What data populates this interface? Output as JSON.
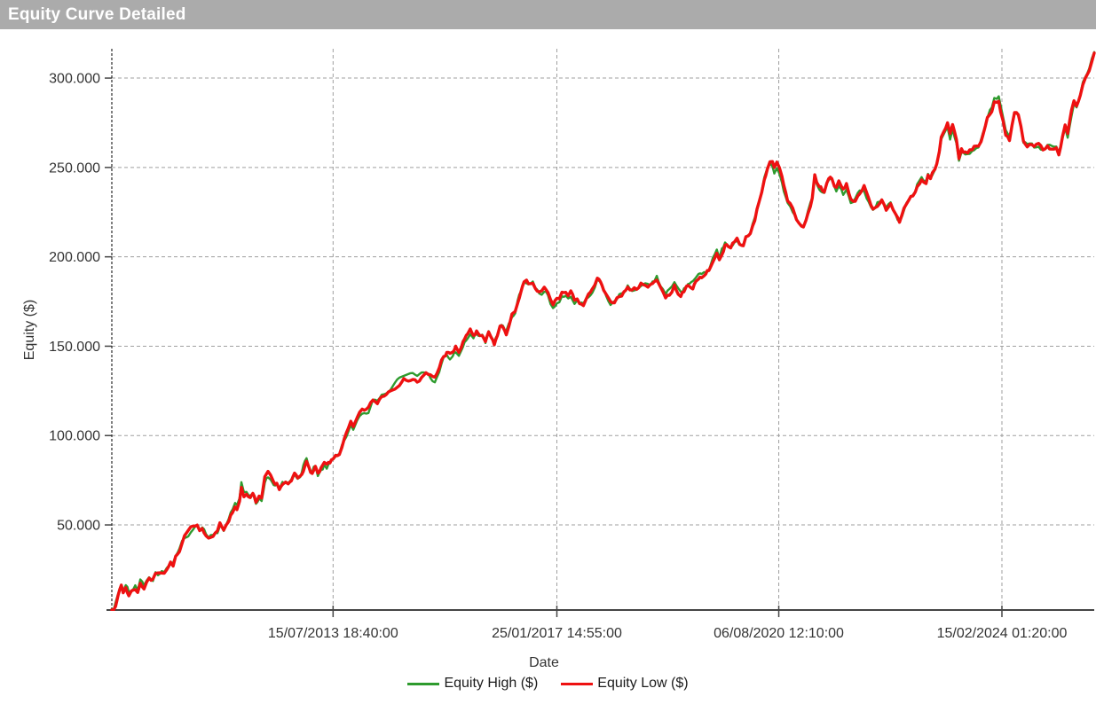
{
  "window": {
    "title": "Equity Curve Detailed"
  },
  "style": {
    "titlebar_bg": "#ababab",
    "titlebar_fg": "#ffffff",
    "background": "#ffffff",
    "grid_color": "#9f9f9f",
    "axis_color": "#454545",
    "label_color": "#333333"
  },
  "chart_data": {
    "type": "line",
    "title": "Equity Curve Detailed",
    "xlabel": "Date",
    "ylabel": "Equity ($)",
    "legend_position": "bottom",
    "grid": true,
    "x_axis": {
      "min": 2010.03,
      "max": 2025.57,
      "ticks": [
        {
          "year": 2013.53,
          "label": "15/07/2013 18:40:00"
        },
        {
          "year": 2017.07,
          "label": "25/01/2017 14:55:00"
        },
        {
          "year": 2020.58,
          "label": "06/08/2020 12:10:00"
        },
        {
          "year": 2024.11,
          "label": "15/02/2024 01:20:00"
        }
      ]
    },
    "y_axis": {
      "min": 2400,
      "max": 316400,
      "ticks": [
        {
          "value": 50000,
          "label": "50.000"
        },
        {
          "value": 100000,
          "label": "100.000"
        },
        {
          "value": 150000,
          "label": "150.000"
        },
        {
          "value": 200000,
          "label": "200.000"
        },
        {
          "value": 250000,
          "label": "250.000"
        },
        {
          "value": 300000,
          "label": "300.000"
        }
      ]
    },
    "series": [
      {
        "name": "Equity High ($)",
        "color": "#2e9b2e",
        "width": 2.4,
        "value_offset": 500,
        "noise_band": 1900,
        "seed": 101
      },
      {
        "name": "Equity Low ($)",
        "color": "#ee1111",
        "width": 3.4,
        "value_offset": 0,
        "noise_band": 2000,
        "seed": 7
      }
    ],
    "points": [
      [
        2010.03,
        2500
      ],
      [
        2010.06,
        2000
      ],
      [
        2010.09,
        6500
      ],
      [
        2010.13,
        11000
      ],
      [
        2010.18,
        16000
      ],
      [
        2010.21,
        12000
      ],
      [
        2010.25,
        15000
      ],
      [
        2010.3,
        11000
      ],
      [
        2010.34,
        13000
      ],
      [
        2010.4,
        15500
      ],
      [
        2010.44,
        13000
      ],
      [
        2010.48,
        18000
      ],
      [
        2010.54,
        16000
      ],
      [
        2010.58,
        20000
      ],
      [
        2010.62,
        22000
      ],
      [
        2010.68,
        20000
      ],
      [
        2010.72,
        24000
      ],
      [
        2010.76,
        23000
      ],
      [
        2010.82,
        25000
      ],
      [
        2010.86,
        25000
      ],
      [
        2010.9,
        27000
      ],
      [
        2010.96,
        30000
      ],
      [
        2011.0,
        29000
      ],
      [
        2011.04,
        33000
      ],
      [
        2011.1,
        35000
      ],
      [
        2011.14,
        39000
      ],
      [
        2011.18,
        42000
      ],
      [
        2011.24,
        45000
      ],
      [
        2011.28,
        47000
      ],
      [
        2011.32,
        49000
      ],
      [
        2011.38,
        51000
      ],
      [
        2011.42,
        48000
      ],
      [
        2011.46,
        50000
      ],
      [
        2011.52,
        45000
      ],
      [
        2011.56,
        44000
      ],
      [
        2011.63,
        45000
      ],
      [
        2011.7,
        46000
      ],
      [
        2011.74,
        50000
      ],
      [
        2011.8,
        47000
      ],
      [
        2011.84,
        51000
      ],
      [
        2011.88,
        54000
      ],
      [
        2011.94,
        58000
      ],
      [
        2011.98,
        62000
      ],
      [
        2012.01,
        60000
      ],
      [
        2012.05,
        65000
      ],
      [
        2012.08,
        73000
      ],
      [
        2012.12,
        67000
      ],
      [
        2012.16,
        67000
      ],
      [
        2012.22,
        64000
      ],
      [
        2012.26,
        66000
      ],
      [
        2012.31,
        62000
      ],
      [
        2012.36,
        65000
      ],
      [
        2012.4,
        63000
      ],
      [
        2012.45,
        75000
      ],
      [
        2012.5,
        78000
      ],
      [
        2012.54,
        76000
      ],
      [
        2012.59,
        72000
      ],
      [
        2012.64,
        73000
      ],
      [
        2012.68,
        70000
      ],
      [
        2012.73,
        72000
      ],
      [
        2012.78,
        72000
      ],
      [
        2012.82,
        71000
      ],
      [
        2012.87,
        73000
      ],
      [
        2012.92,
        77000
      ],
      [
        2012.97,
        75000
      ],
      [
        2013.01,
        77000
      ],
      [
        2013.06,
        82000
      ],
      [
        2013.11,
        85000
      ],
      [
        2013.15,
        81000
      ],
      [
        2013.2,
        79000
      ],
      [
        2013.25,
        82000
      ],
      [
        2013.29,
        77000
      ],
      [
        2013.34,
        80000
      ],
      [
        2013.39,
        83000
      ],
      [
        2013.43,
        82000
      ],
      [
        2013.48,
        84000
      ],
      [
        2013.53,
        85000
      ],
      [
        2013.57,
        87000
      ],
      [
        2013.63,
        89000
      ],
      [
        2013.67,
        94000
      ],
      [
        2013.71,
        98000
      ],
      [
        2013.77,
        102000
      ],
      [
        2013.81,
        106000
      ],
      [
        2013.85,
        103000
      ],
      [
        2013.91,
        108000
      ],
      [
        2013.95,
        111000
      ],
      [
        2013.99,
        113000
      ],
      [
        2014.09,
        114000
      ],
      [
        2014.16,
        119000
      ],
      [
        2014.23,
        117000
      ],
      [
        2014.3,
        122000
      ],
      [
        2014.37,
        124000
      ],
      [
        2014.44,
        127000
      ],
      [
        2014.51,
        128000
      ],
      [
        2014.58,
        130000
      ],
      [
        2014.65,
        131000
      ],
      [
        2014.72,
        132000
      ],
      [
        2014.79,
        133000
      ],
      [
        2014.86,
        131000
      ],
      [
        2014.93,
        133000
      ],
      [
        2015.0,
        134000
      ],
      [
        2015.07,
        132000
      ],
      [
        2015.14,
        131000
      ],
      [
        2015.21,
        137000
      ],
      [
        2015.28,
        144000
      ],
      [
        2015.33,
        146000
      ],
      [
        2015.38,
        144000
      ],
      [
        2015.42,
        145000
      ],
      [
        2015.47,
        148000
      ],
      [
        2015.52,
        146000
      ],
      [
        2015.56,
        149000
      ],
      [
        2015.61,
        153000
      ],
      [
        2015.66,
        155000
      ],
      [
        2015.7,
        158000
      ],
      [
        2015.75,
        155000
      ],
      [
        2015.8,
        157000
      ],
      [
        2015.85,
        154000
      ],
      [
        2015.89,
        154000
      ],
      [
        2015.94,
        151000
      ],
      [
        2015.99,
        156000
      ],
      [
        2016.03,
        153000
      ],
      [
        2016.08,
        150000
      ],
      [
        2016.13,
        155000
      ],
      [
        2016.17,
        160000
      ],
      [
        2016.22,
        159000
      ],
      [
        2016.27,
        157000
      ],
      [
        2016.31,
        161000
      ],
      [
        2016.36,
        166000
      ],
      [
        2016.41,
        169000
      ],
      [
        2016.45,
        175000
      ],
      [
        2016.5,
        179000
      ],
      [
        2016.55,
        184000
      ],
      [
        2016.59,
        185000
      ],
      [
        2016.65,
        183000
      ],
      [
        2016.69,
        184000
      ],
      [
        2016.73,
        181000
      ],
      [
        2016.79,
        179000
      ],
      [
        2016.83,
        179000
      ],
      [
        2016.87,
        181000
      ],
      [
        2016.93,
        178000
      ],
      [
        2016.97,
        174000
      ],
      [
        2017.01,
        172000
      ],
      [
        2017.07,
        175000
      ],
      [
        2017.11,
        176000
      ],
      [
        2017.15,
        179000
      ],
      [
        2017.21,
        179000
      ],
      [
        2017.25,
        177000
      ],
      [
        2017.29,
        179000
      ],
      [
        2017.35,
        175000
      ],
      [
        2017.39,
        177000
      ],
      [
        2017.43,
        175000
      ],
      [
        2017.49,
        174000
      ],
      [
        2017.53,
        176000
      ],
      [
        2017.57,
        178000
      ],
      [
        2017.63,
        180000
      ],
      [
        2017.67,
        183000
      ],
      [
        2017.71,
        187000
      ],
      [
        2017.76,
        184000
      ],
      [
        2017.81,
        180000
      ],
      [
        2017.85,
        177000
      ],
      [
        2017.92,
        173000
      ],
      [
        2017.98,
        175000
      ],
      [
        2018.02,
        177000
      ],
      [
        2018.06,
        179000
      ],
      [
        2018.13,
        181000
      ],
      [
        2018.19,
        184000
      ],
      [
        2018.26,
        182000
      ],
      [
        2018.33,
        183000
      ],
      [
        2018.4,
        185000
      ],
      [
        2018.47,
        186000
      ],
      [
        2018.51,
        185000
      ],
      [
        2018.56,
        185000
      ],
      [
        2018.61,
        187000
      ],
      [
        2018.65,
        189000
      ],
      [
        2018.71,
        185000
      ],
      [
        2018.75,
        182000
      ],
      [
        2018.79,
        179000
      ],
      [
        2018.85,
        180000
      ],
      [
        2018.89,
        181000
      ],
      [
        2018.93,
        184000
      ],
      [
        2018.99,
        181000
      ],
      [
        2019.03,
        179000
      ],
      [
        2019.08,
        181000
      ],
      [
        2019.12,
        183000
      ],
      [
        2019.17,
        183000
      ],
      [
        2019.22,
        184000
      ],
      [
        2019.27,
        186000
      ],
      [
        2019.31,
        188000
      ],
      [
        2019.36,
        190000
      ],
      [
        2019.4,
        191000
      ],
      [
        2019.45,
        193000
      ],
      [
        2019.5,
        195000
      ],
      [
        2019.54,
        199000
      ],
      [
        2019.6,
        204000
      ],
      [
        2019.64,
        199000
      ],
      [
        2019.68,
        203000
      ],
      [
        2019.73,
        207000
      ],
      [
        2019.78,
        205000
      ],
      [
        2019.82,
        204000
      ],
      [
        2019.88,
        208000
      ],
      [
        2019.92,
        210000
      ],
      [
        2019.96,
        208000
      ],
      [
        2020.02,
        206000
      ],
      [
        2020.06,
        210000
      ],
      [
        2020.1,
        212000
      ],
      [
        2020.13,
        213000
      ],
      [
        2020.2,
        222000
      ],
      [
        2020.27,
        232000
      ],
      [
        2020.31,
        238000
      ],
      [
        2020.35,
        245000
      ],
      [
        2020.4,
        250000
      ],
      [
        2020.44,
        253000
      ],
      [
        2020.48,
        252000
      ],
      [
        2020.51,
        248000
      ],
      [
        2020.55,
        251000
      ],
      [
        2020.59,
        248000
      ],
      [
        2020.63,
        243000
      ],
      [
        2020.66,
        238000
      ],
      [
        2020.72,
        230000
      ],
      [
        2020.76,
        229000
      ],
      [
        2020.8,
        226000
      ],
      [
        2020.86,
        221000
      ],
      [
        2020.9,
        219000
      ],
      [
        2020.94,
        217000
      ],
      [
        2020.97,
        216000
      ],
      [
        2021.01,
        220000
      ],
      [
        2021.04,
        223000
      ],
      [
        2021.08,
        228000
      ],
      [
        2021.11,
        232000
      ],
      [
        2021.15,
        245000
      ],
      [
        2021.18,
        241000
      ],
      [
        2021.22,
        239000
      ],
      [
        2021.27,
        237000
      ],
      [
        2021.3,
        236000
      ],
      [
        2021.34,
        241000
      ],
      [
        2021.37,
        243000
      ],
      [
        2021.42,
        244000
      ],
      [
        2021.46,
        240000
      ],
      [
        2021.49,
        238000
      ],
      [
        2021.53,
        241000
      ],
      [
        2021.57,
        238000
      ],
      [
        2021.6,
        236000
      ],
      [
        2021.65,
        239000
      ],
      [
        2021.69,
        235000
      ],
      [
        2021.72,
        231000
      ],
      [
        2021.76,
        230000
      ],
      [
        2021.79,
        231000
      ],
      [
        2021.83,
        234000
      ],
      [
        2021.86,
        236000
      ],
      [
        2021.9,
        237000
      ],
      [
        2021.93,
        238000
      ],
      [
        2021.97,
        234000
      ],
      [
        2022.0,
        231000
      ],
      [
        2022.04,
        228000
      ],
      [
        2022.07,
        226000
      ],
      [
        2022.11,
        228000
      ],
      [
        2022.14,
        230000
      ],
      [
        2022.18,
        231000
      ],
      [
        2022.21,
        232000
      ],
      [
        2022.25,
        230000
      ],
      [
        2022.28,
        228000
      ],
      [
        2022.32,
        230000
      ],
      [
        2022.35,
        231000
      ],
      [
        2022.39,
        228000
      ],
      [
        2022.42,
        226000
      ],
      [
        2022.46,
        222000
      ],
      [
        2022.49,
        220000
      ],
      [
        2022.53,
        224000
      ],
      [
        2022.56,
        227000
      ],
      [
        2022.6,
        230000
      ],
      [
        2022.63,
        233000
      ],
      [
        2022.67,
        235000
      ],
      [
        2022.7,
        236000
      ],
      [
        2022.74,
        238000
      ],
      [
        2022.77,
        241000
      ],
      [
        2022.81,
        242000
      ],
      [
        2022.84,
        243000
      ],
      [
        2022.87,
        241000
      ],
      [
        2022.91,
        240000
      ],
      [
        2022.94,
        244000
      ],
      [
        2022.98,
        242000
      ],
      [
        2023.01,
        245000
      ],
      [
        2023.05,
        247000
      ],
      [
        2023.08,
        250000
      ],
      [
        2023.12,
        257000
      ],
      [
        2023.15,
        265000
      ],
      [
        2023.19,
        268000
      ],
      [
        2023.22,
        270000
      ],
      [
        2023.25,
        273000
      ],
      [
        2023.29,
        267000
      ],
      [
        2023.33,
        272000
      ],
      [
        2023.36,
        268000
      ],
      [
        2023.39,
        265000
      ],
      [
        2023.43,
        255000
      ],
      [
        2023.47,
        259000
      ],
      [
        2023.5,
        258000
      ],
      [
        2023.53,
        257000
      ],
      [
        2023.57,
        258000
      ],
      [
        2023.6,
        259000
      ],
      [
        2023.64,
        259000
      ],
      [
        2023.67,
        260000
      ],
      [
        2023.71,
        261000
      ],
      [
        2023.74,
        262000
      ],
      [
        2023.78,
        265000
      ],
      [
        2023.81,
        268000
      ],
      [
        2023.85,
        273000
      ],
      [
        2023.88,
        278000
      ],
      [
        2023.92,
        281000
      ],
      [
        2023.95,
        283000
      ],
      [
        2023.99,
        287000
      ],
      [
        2024.03,
        288000
      ],
      [
        2024.06,
        289000
      ],
      [
        2024.09,
        283000
      ],
      [
        2024.13,
        277000
      ],
      [
        2024.17,
        270000
      ],
      [
        2024.23,
        267000
      ],
      [
        2024.27,
        274000
      ],
      [
        2024.31,
        281000
      ],
      [
        2024.37,
        278000
      ],
      [
        2024.41,
        272000
      ],
      [
        2024.45,
        263000
      ],
      [
        2024.51,
        261000
      ],
      [
        2024.55,
        262000
      ],
      [
        2024.62,
        260000
      ],
      [
        2024.69,
        262000
      ],
      [
        2024.76,
        259000
      ],
      [
        2024.83,
        263000
      ],
      [
        2024.9,
        261000
      ],
      [
        2024.97,
        263000
      ],
      [
        2025.01,
        259000
      ],
      [
        2025.07,
        268000
      ],
      [
        2025.11,
        273000
      ],
      [
        2025.15,
        268000
      ],
      [
        2025.21,
        280000
      ],
      [
        2025.25,
        287000
      ],
      [
        2025.29,
        285000
      ],
      [
        2025.35,
        292000
      ],
      [
        2025.39,
        298000
      ],
      [
        2025.43,
        302000
      ],
      [
        2025.49,
        306000
      ],
      [
        2025.53,
        311000
      ],
      [
        2025.57,
        314000
      ]
    ]
  }
}
